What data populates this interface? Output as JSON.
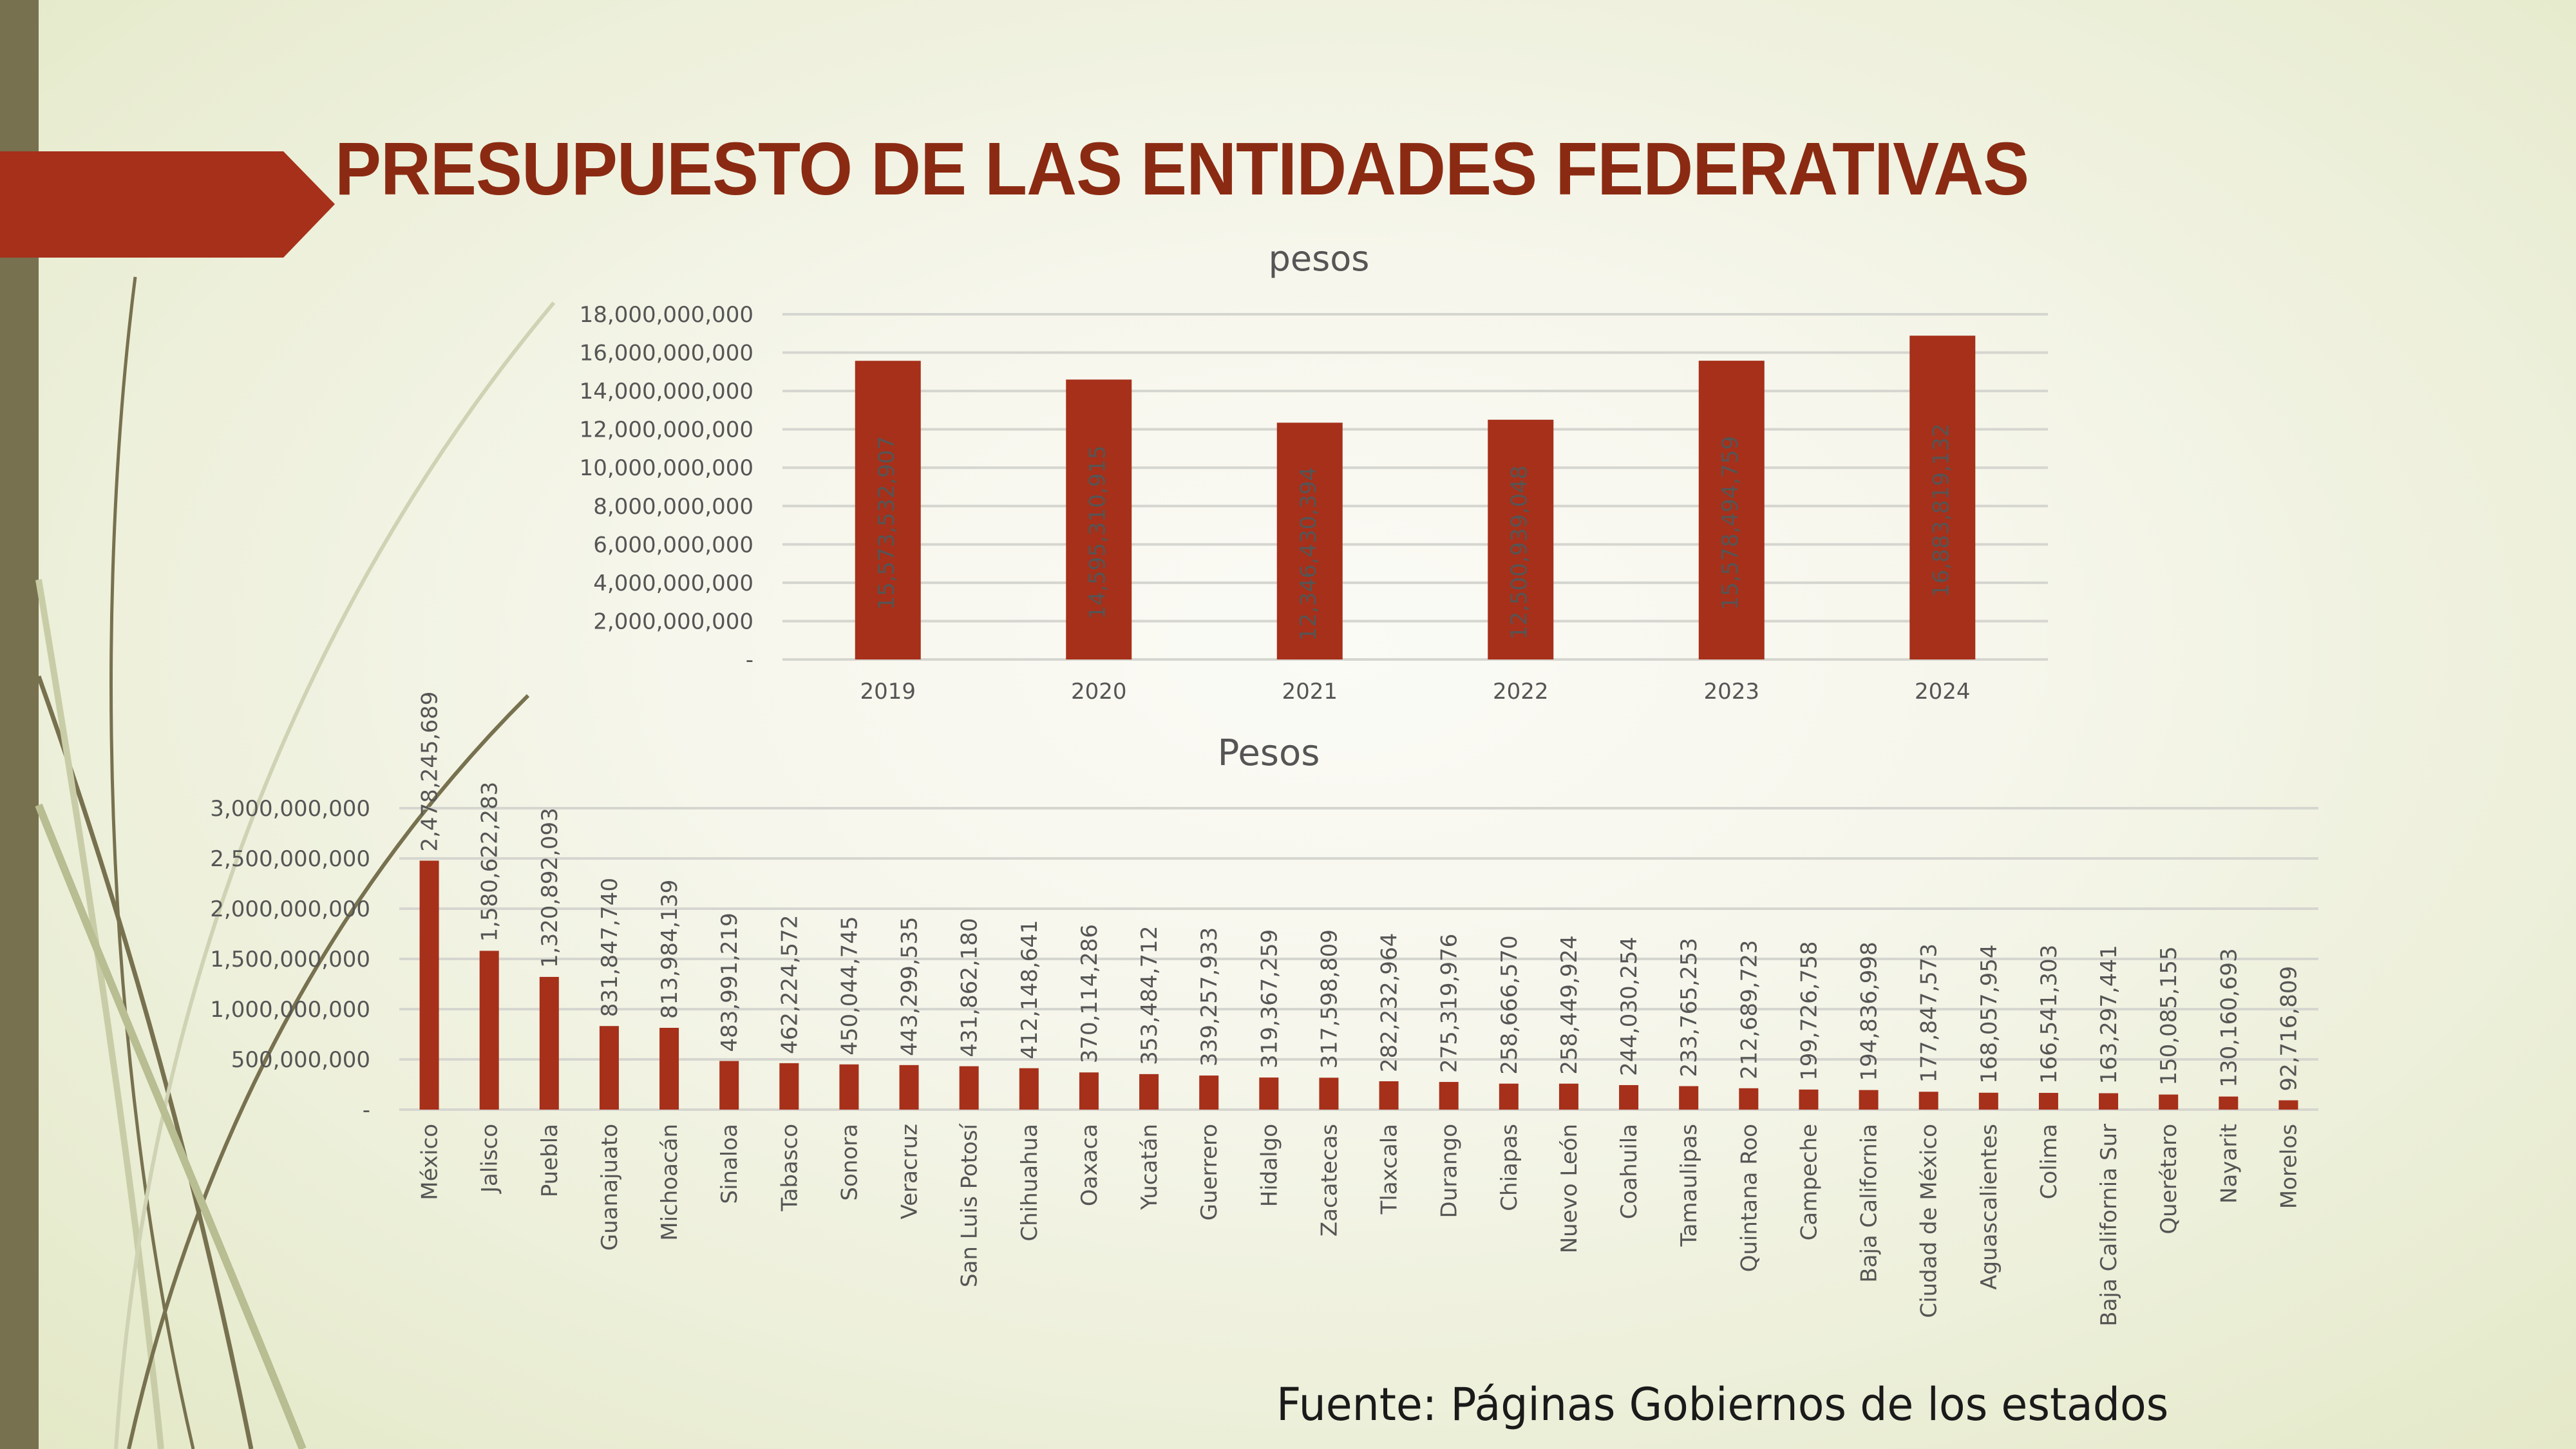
{
  "slide": {
    "title": "PRESUPUESTO DE LAS ENTIDADES FEDERATIVAS",
    "source": "Fuente: Páginas Gobiernos de los estados",
    "accent_color": "#a6301a",
    "sidebar_color": "#77714f"
  },
  "chart_data": [
    {
      "type": "bar",
      "title": "pesos",
      "xlabel": "",
      "ylabel": "",
      "categories": [
        "2019",
        "2020",
        "2021",
        "2022",
        "2023",
        "2024"
      ],
      "values": [
        15573532907,
        14595310915,
        12346430394,
        12500939048,
        15578494759,
        16883819132
      ],
      "value_labels": [
        "15,573,532,907",
        "14,595,310,915",
        "12,346,430,394",
        "12,500,939,048",
        "15,578,494,759",
        "16,883,819,132"
      ],
      "ylim": [
        0,
        18000000000
      ],
      "yticks": [
        0,
        2000000000,
        4000000000,
        6000000000,
        8000000000,
        10000000000,
        12000000000,
        14000000000,
        16000000000,
        18000000000
      ],
      "ytick_labels": [
        "-",
        "2,000,000,000",
        "4,000,000,000",
        "6,000,000,000",
        "8,000,000,000",
        "10,000,000,000",
        "12,000,000,000",
        "14,000,000,000",
        "16,000,000,000",
        "18,000,000,000"
      ],
      "grid": true,
      "legend": "none",
      "bar_color": "#a6301a",
      "label_orientation": "vertical-inside"
    },
    {
      "type": "bar",
      "title": "Pesos",
      "xlabel": "",
      "ylabel": "",
      "categories": [
        "México",
        "Jalisco",
        "Puebla",
        "Guanajuato",
        "Michoacán",
        "Sinaloa",
        "Tabasco",
        "Sonora",
        "Veracruz",
        "San Luis Potosí",
        "Chihuahua",
        "Oaxaca",
        "Yucatán",
        "Guerrero",
        "Hidalgo",
        "Zacatecas",
        "Tlaxcala",
        "Durango",
        "Chiapas",
        "Nuevo León",
        "Coahuila",
        "Tamaulipas",
        "Quintana Roo",
        "Campeche",
        "Baja California",
        "Ciudad de México",
        "Aguascalientes",
        "Colima",
        "Baja California Sur",
        "Querétaro",
        "Nayarit",
        "Morelos"
      ],
      "values": [
        2478245689,
        1580622283,
        1320892093,
        831847740,
        813984139,
        483991219,
        462224572,
        450044745,
        443299535,
        431862180,
        412148641,
        370114286,
        353484712,
        339257933,
        319367259,
        317598809,
        282232964,
        275319976,
        258666570,
        258449924,
        244030254,
        233765253,
        212689723,
        199726758,
        194836998,
        177847573,
        168057954,
        166541303,
        163297441,
        150085155,
        130160693,
        92716809
      ],
      "value_labels": [
        "2,478,245,689",
        "1,580,622,283",
        "1,320,892,093",
        "831,847,740",
        "813,984,139",
        "483,991,219",
        "462,224,572",
        "450,044,745",
        "443,299,535",
        "431,862,180",
        "412,148,641",
        "370,114,286",
        "353,484,712",
        "339,257,933",
        "319,367,259",
        "317,598,809",
        "282,232,964",
        "275,319,976",
        "258,666,570",
        "258,449,924",
        "244,030,254",
        "233,765,253",
        "212,689,723",
        "199,726,758",
        "194,836,998",
        "177,847,573",
        "168,057,954",
        "166,541,303",
        "163,297,441",
        "150,085,155",
        "130,160,693",
        "92,716,809"
      ],
      "ylim": [
        0,
        3000000000
      ],
      "yticks": [
        0,
        500000000,
        1000000000,
        1500000000,
        2000000000,
        2500000000,
        3000000000
      ],
      "ytick_labels": [
        "-",
        "500,000,000",
        "1,000,000,000",
        "1,500,000,000",
        "2,000,000,000",
        "2,500,000,000",
        "3,000,000,000"
      ],
      "grid": true,
      "legend": "none",
      "bar_color": "#a6301a",
      "label_orientation": "vertical-above"
    }
  ]
}
